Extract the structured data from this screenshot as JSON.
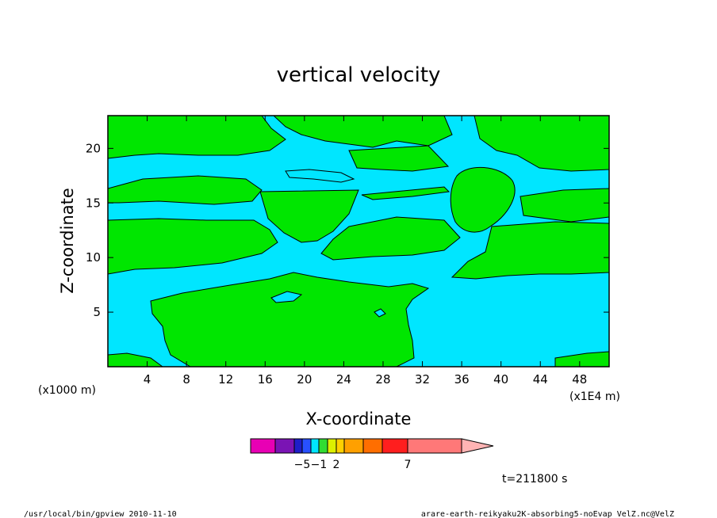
{
  "chart_data": {
    "type": "contour",
    "title": "vertical velocity",
    "xlabel": "X-coordinate",
    "ylabel": "Z-coordinate",
    "x_unit": "(x1E4 m)",
    "y_unit": "(x1000 m)",
    "xlim": [
      0,
      51
    ],
    "ylim": [
      0,
      23
    ],
    "x_ticks": [
      4,
      8,
      12,
      16,
      20,
      24,
      28,
      32,
      36,
      40,
      44,
      48
    ],
    "y_ticks": [
      5,
      10,
      15,
      20
    ],
    "time_label": "t=211800 s",
    "colorbar": {
      "colors": [
        "#e800b4",
        "#7a14b4",
        "#1e1ec8",
        "#2850ff",
        "#00e6ff",
        "#32dc32",
        "#dcf000",
        "#ffd000",
        "#ffa000",
        "#ff6e00",
        "#ff1e1e",
        "#ff7878",
        "#ffb4b4"
      ],
      "tick_labels": [
        {
          "at_index": 2,
          "text": "−5"
        },
        {
          "at_index": 4,
          "text": "−1"
        },
        {
          "at_index": 6,
          "text": "2"
        },
        {
          "at_index": 10,
          "text": "7"
        }
      ]
    },
    "colors": {
      "negative": "#00e6ff",
      "positive": "#00e600"
    }
  },
  "footer": {
    "left": "/usr/local/bin/gpview  2010-11-10",
    "right": "arare-earth-reikyaku2K-absorbing5-noEvap_VelZ.nc@VelZ"
  }
}
